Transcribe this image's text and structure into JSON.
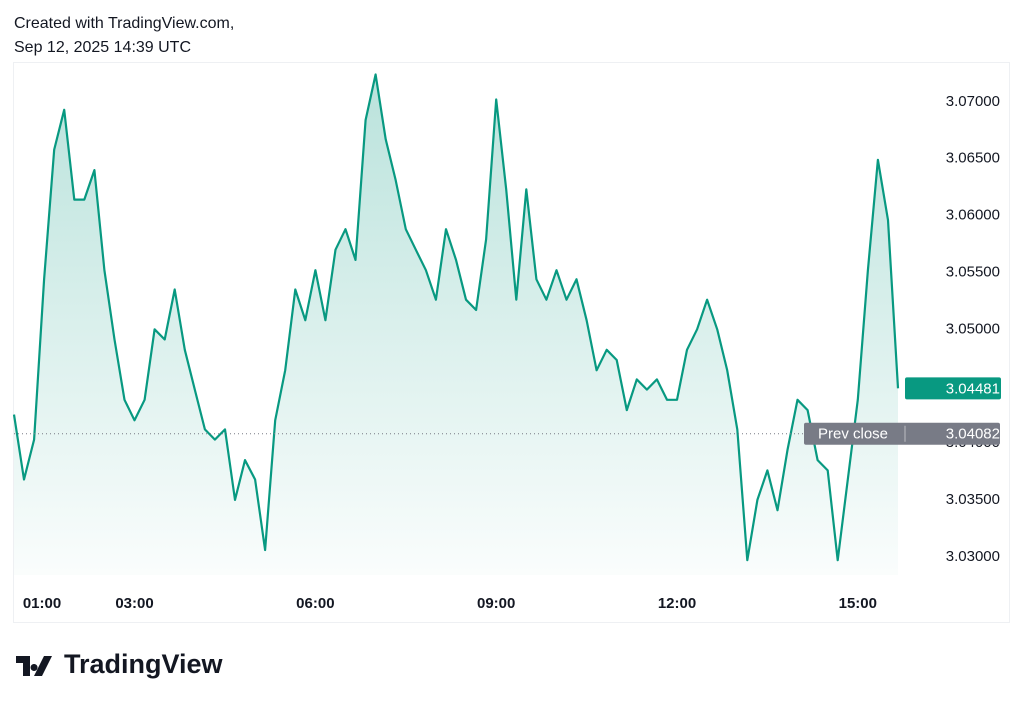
{
  "header": {
    "created": "Created with TradingView.com,",
    "timestamp": "Sep 12, 2025 14:39 UTC"
  },
  "footer": {
    "logo": "TradingView"
  },
  "chart_data": {
    "type": "area",
    "x": [
      "01:00",
      "01:10",
      "01:20",
      "01:30",
      "01:40",
      "01:50",
      "02:00",
      "02:10",
      "02:20",
      "02:30",
      "02:40",
      "02:50",
      "03:00",
      "03:10",
      "03:20",
      "03:30",
      "03:40",
      "03:50",
      "04:00",
      "04:10",
      "04:20",
      "04:30",
      "04:40",
      "04:50",
      "05:00",
      "05:10",
      "05:20",
      "05:30",
      "05:40",
      "05:50",
      "06:00",
      "06:10",
      "06:20",
      "06:30",
      "06:40",
      "06:50",
      "07:00",
      "07:10",
      "07:20",
      "07:30",
      "07:40",
      "07:50",
      "08:00",
      "08:10",
      "08:20",
      "08:30",
      "08:40",
      "08:50",
      "09:00",
      "09:10",
      "09:20",
      "09:30",
      "09:40",
      "09:50",
      "10:00",
      "10:10",
      "10:20",
      "10:30",
      "10:40",
      "10:50",
      "11:00",
      "11:10",
      "11:20",
      "11:30",
      "11:40",
      "11:50",
      "12:00",
      "12:10",
      "12:20",
      "12:30",
      "12:40",
      "12:50",
      "13:00",
      "13:10",
      "13:20",
      "13:30",
      "13:40",
      "13:50",
      "14:00",
      "14:10",
      "14:20",
      "14:30",
      "14:40",
      "14:50",
      "15:00",
      "15:10",
      "15:20",
      "15:30",
      "15:40"
    ],
    "values": [
      3.0425,
      3.0368,
      3.0403,
      3.0544,
      3.0658,
      3.0693,
      3.0614,
      3.0614,
      3.064,
      3.0552,
      3.0491,
      3.0438,
      3.042,
      3.0438,
      3.05,
      3.0491,
      3.0535,
      3.0482,
      3.0447,
      3.0412,
      3.0403,
      3.0412,
      3.035,
      3.0385,
      3.0368,
      3.0306,
      3.042,
      3.0464,
      3.0535,
      3.0508,
      3.0552,
      3.0508,
      3.057,
      3.0588,
      3.0561,
      3.0684,
      3.0724,
      3.0667,
      3.0631,
      3.0588,
      3.057,
      3.0552,
      3.0526,
      3.0588,
      3.0561,
      3.0526,
      3.0517,
      3.0579,
      3.0702,
      3.0623,
      3.0526,
      3.0623,
      3.0544,
      3.0526,
      3.0552,
      3.0526,
      3.0544,
      3.0508,
      3.0464,
      3.0482,
      3.0473,
      3.0429,
      3.0456,
      3.0447,
      3.0456,
      3.0438,
      3.0438,
      3.0482,
      3.05,
      3.0526,
      3.05,
      3.0464,
      3.0412,
      3.0297,
      3.035,
      3.0376,
      3.0341,
      3.0394,
      3.0438,
      3.0429,
      3.0385,
      3.0376,
      3.0297,
      3.0368,
      3.0438,
      3.0552,
      3.0649,
      3.0596,
      3.04481
    ],
    "color": "#089981",
    "xlim": [
      "01:00",
      "15:40"
    ],
    "xticks": [
      "01:00",
      "03:00",
      "06:00",
      "09:00",
      "12:00",
      "15:00"
    ],
    "ylim": [
      3.0284,
      3.0735
    ],
    "yticks": [
      {
        "value": 3.03,
        "label": "3.03000"
      },
      {
        "value": 3.035,
        "label": "3.03500"
      },
      {
        "value": 3.04,
        "label": "3.04000"
      },
      {
        "value": 3.045,
        "label": "3.04500"
      },
      {
        "value": 3.05,
        "label": "3.05000"
      },
      {
        "value": 3.055,
        "label": "3.05500"
      },
      {
        "value": 3.06,
        "label": "3.06000"
      },
      {
        "value": 3.065,
        "label": "3.06500"
      },
      {
        "value": 3.07,
        "label": "3.07000"
      }
    ],
    "last_price": 3.04481,
    "prev_close_label": "Prev close",
    "prev_close": 3.04082,
    "prev_close_color": "#787b86"
  }
}
